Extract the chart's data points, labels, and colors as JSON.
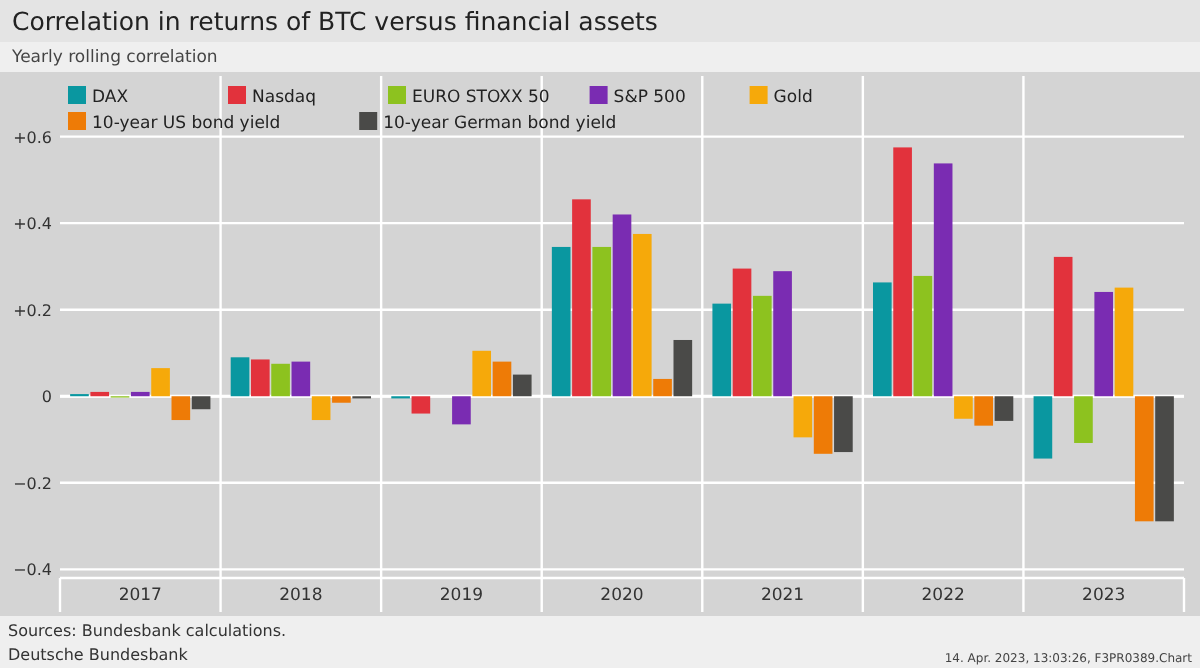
{
  "chart_data": {
    "type": "bar",
    "title": "Correlation in returns of BTC versus financial assets",
    "subtitle": "Yearly rolling correlation",
    "categories": [
      "2017",
      "2018",
      "2019",
      "2020",
      "2021",
      "2022",
      "2023"
    ],
    "series": [
      {
        "name": "DAX",
        "color": "#0a97a0",
        "values": [
          0.005,
          0.09,
          -0.005,
          0.345,
          0.214,
          0.263,
          -0.144
        ]
      },
      {
        "name": "Nasdaq",
        "color": "#e2323c",
        "values": [
          0.01,
          0.085,
          -0.04,
          0.455,
          0.295,
          0.575,
          0.322
        ]
      },
      {
        "name": "EURO STOXX 50",
        "color": "#8dc21f",
        "values": [
          -0.003,
          0.075,
          0,
          0.345,
          0.232,
          0.278,
          -0.108
        ]
      },
      {
        "name": "S&P 500",
        "color": "#7a2cb2",
        "values": [
          0.01,
          0.08,
          -0.065,
          0.42,
          0.289,
          0.538,
          0.241
        ]
      },
      {
        "name": "Gold",
        "color": "#f6a90a",
        "values": [
          0.065,
          -0.055,
          0.105,
          0.375,
          -0.095,
          -0.052,
          0.251
        ]
      },
      {
        "name": "10-year US bond yield",
        "color": "#ee7b06",
        "values": [
          -0.055,
          -0.015,
          0.08,
          0.04,
          -0.133,
          -0.068,
          -0.289
        ]
      },
      {
        "name": "10-year German bond yield",
        "color": "#4a4a48",
        "values": [
          -0.03,
          -0.005,
          0.05,
          0.13,
          -0.129,
          -0.057,
          -0.289
        ]
      }
    ],
    "ylim": [
      -0.42,
      0.74
    ],
    "yticks": [
      {
        "value": 0.6,
        "label": "+0.6"
      },
      {
        "value": 0.4,
        "label": "+0.4"
      },
      {
        "value": 0.2,
        "label": "+0.2"
      },
      0,
      {
        "value": -0.2,
        "label": "−0.2"
      },
      {
        "value": -0.4,
        "label": "−0.4"
      }
    ],
    "grid": "y",
    "legend": "top left",
    "annotations": [
      "Sources: Bundesbank calculations.",
      "Deutsche Bundesbank",
      "14. Apr. 2023, 13:03:26, F3PR0389.Chart"
    ]
  }
}
